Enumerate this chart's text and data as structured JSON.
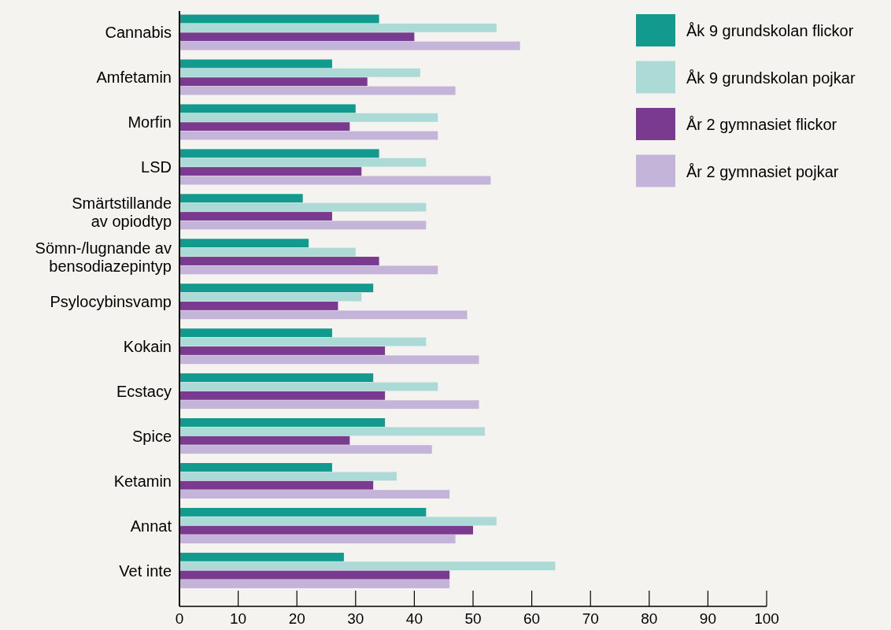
{
  "chart_data": {
    "type": "bar",
    "orientation": "horizontal",
    "categories": [
      "Cannabis",
      "Amfetamin",
      "Morfin",
      "LSD",
      "Smärtstillande\nav opiodtyp",
      "Sömn-/lugnande av\nbensodiazepintyp",
      "Psylocybinsvamp",
      "Kokain",
      "Ecstacy",
      "Spice",
      "Ketamin",
      "Annat",
      "Vet inte"
    ],
    "series": [
      {
        "name": "Åk 9 grundskolan flickor",
        "color": "#139a8f",
        "values": [
          34,
          26,
          30,
          34,
          21,
          22,
          33,
          26,
          33,
          35,
          26,
          42,
          28
        ]
      },
      {
        "name": "Åk 9 grundskolan pojkar",
        "color": "#acdad6",
        "values": [
          54,
          41,
          44,
          42,
          42,
          30,
          31,
          42,
          44,
          52,
          37,
          54,
          64
        ]
      },
      {
        "name": "År 2 gymnasiet flickor",
        "color": "#7a3a8f",
        "values": [
          40,
          32,
          29,
          31,
          26,
          34,
          27,
          35,
          35,
          29,
          33,
          50,
          46
        ]
      },
      {
        "name": "År 2 gymnasiet pojkar",
        "color": "#c5b4d9",
        "values": [
          58,
          47,
          44,
          53,
          42,
          44,
          49,
          51,
          51,
          43,
          46,
          47,
          46
        ]
      }
    ],
    "xlim": [
      0,
      100
    ],
    "xticks": [
      0,
      10,
      20,
      30,
      40,
      50,
      60,
      70,
      80,
      90,
      100
    ],
    "grid": false,
    "legend": "top right"
  }
}
